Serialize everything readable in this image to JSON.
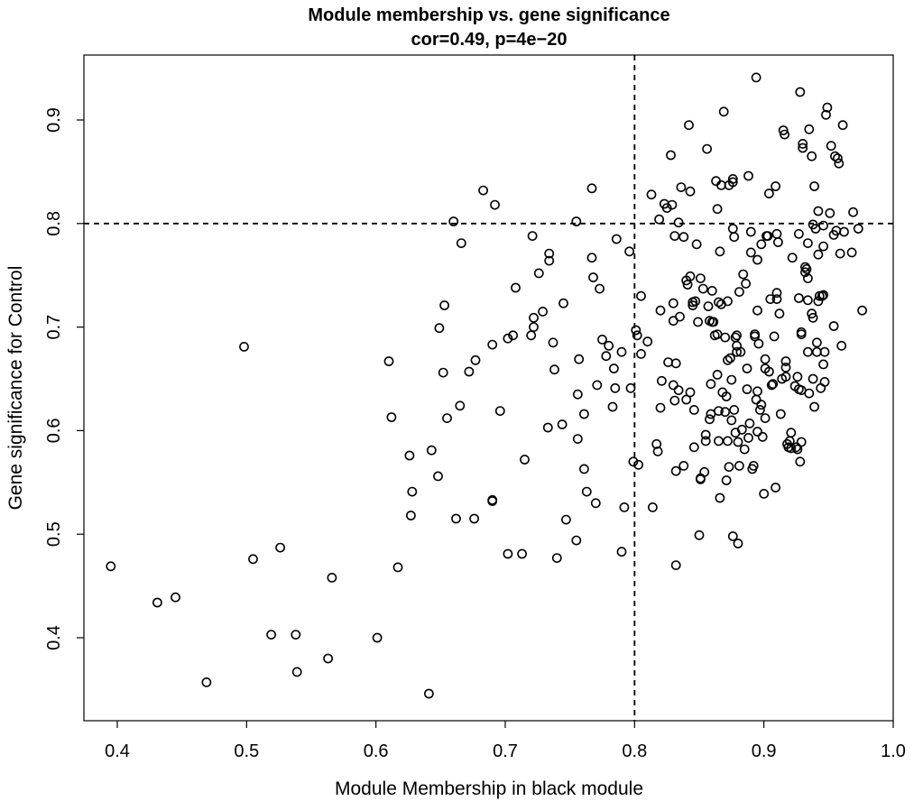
{
  "chart_data": {
    "type": "scatter",
    "title": "Module membership vs. gene significance",
    "subtitle": "cor=0.49, p=4e−20",
    "xlabel": "Module Membership in black module",
    "ylabel": "Gene significance for Control",
    "xlim": [
      0.375,
      1.0
    ],
    "ylim": [
      0.33,
      0.96
    ],
    "xticks": [
      0.4,
      0.5,
      0.6,
      0.7,
      0.8,
      0.9,
      1.0
    ],
    "xtick_labels": [
      "0.4",
      "0.5",
      "0.6",
      "0.7",
      "0.8",
      "0.9",
      "1.0"
    ],
    "yticks": [
      0.4,
      0.5,
      0.6,
      0.7,
      0.8,
      0.9
    ],
    "ytick_labels": [
      "0.4",
      "0.5",
      "0.6",
      "0.7",
      "0.8",
      "0.9"
    ],
    "reference_lines": [
      {
        "orientation": "vertical",
        "value": 0.8,
        "style": "dashed"
      },
      {
        "orientation": "horizontal",
        "value": 0.8,
        "style": "dashed"
      }
    ],
    "grid": false,
    "marker": "open-circle",
    "color": "#000000",
    "points": [
      [
        0.395,
        0.469
      ],
      [
        0.431,
        0.434
      ],
      [
        0.445,
        0.439
      ],
      [
        0.469,
        0.357
      ],
      [
        0.498,
        0.681
      ],
      [
        0.505,
        0.476
      ],
      [
        0.519,
        0.403
      ],
      [
        0.526,
        0.487
      ],
      [
        0.538,
        0.403
      ],
      [
        0.539,
        0.367
      ],
      [
        0.563,
        0.38
      ],
      [
        0.566,
        0.458
      ],
      [
        0.601,
        0.4
      ],
      [
        0.61,
        0.667
      ],
      [
        0.612,
        0.613
      ],
      [
        0.617,
        0.468
      ],
      [
        0.626,
        0.576
      ],
      [
        0.627,
        0.518
      ],
      [
        0.628,
        0.541
      ],
      [
        0.641,
        0.346
      ],
      [
        0.643,
        0.581
      ],
      [
        0.648,
        0.556
      ],
      [
        0.649,
        0.699
      ],
      [
        0.652,
        0.656
      ],
      [
        0.653,
        0.721
      ],
      [
        0.655,
        0.612
      ],
      [
        0.66,
        0.802
      ],
      [
        0.662,
        0.515
      ],
      [
        0.665,
        0.624
      ],
      [
        0.666,
        0.781
      ],
      [
        0.672,
        0.657
      ],
      [
        0.676,
        0.515
      ],
      [
        0.677,
        0.668
      ],
      [
        0.683,
        0.832
      ],
      [
        0.69,
        0.533
      ],
      [
        0.69,
        0.532
      ],
      [
        0.69,
        0.683
      ],
      [
        0.692,
        0.818
      ],
      [
        0.696,
        0.619
      ],
      [
        0.702,
        0.481
      ],
      [
        0.702,
        0.689
      ],
      [
        0.706,
        0.692
      ],
      [
        0.708,
        0.738
      ],
      [
        0.713,
        0.481
      ],
      [
        0.715,
        0.572
      ],
      [
        0.72,
        0.692
      ],
      [
        0.721,
        0.788
      ],
      [
        0.722,
        0.709
      ],
      [
        0.722,
        0.7
      ],
      [
        0.726,
        0.752
      ],
      [
        0.729,
        0.715
      ],
      [
        0.733,
        0.603
      ],
      [
        0.734,
        0.771
      ],
      [
        0.734,
        0.764
      ],
      [
        0.737,
        0.685
      ],
      [
        0.738,
        0.659
      ],
      [
        0.74,
        0.477
      ],
      [
        0.744,
        0.606
      ],
      [
        0.745,
        0.723
      ],
      [
        0.747,
        0.514
      ],
      [
        0.755,
        0.802
      ],
      [
        0.755,
        0.494
      ],
      [
        0.756,
        0.592
      ],
      [
        0.756,
        0.635
      ],
      [
        0.757,
        0.669
      ],
      [
        0.761,
        0.563
      ],
      [
        0.761,
        0.616
      ],
      [
        0.763,
        0.541
      ],
      [
        0.767,
        0.834
      ],
      [
        0.767,
        0.767
      ],
      [
        0.768,
        0.748
      ],
      [
        0.77,
        0.53
      ],
      [
        0.771,
        0.644
      ],
      [
        0.773,
        0.737
      ],
      [
        0.775,
        0.688
      ],
      [
        0.778,
        0.672
      ],
      [
        0.78,
        0.682
      ],
      [
        0.783,
        0.623
      ],
      [
        0.784,
        0.66
      ],
      [
        0.785,
        0.641
      ],
      [
        0.786,
        0.785
      ],
      [
        0.79,
        0.676
      ],
      [
        0.79,
        0.483
      ],
      [
        0.792,
        0.526
      ],
      [
        0.796,
        0.773
      ],
      [
        0.797,
        0.641
      ],
      [
        0.799,
        0.57
      ],
      [
        0.801,
        0.697
      ],
      [
        0.802,
        0.692
      ],
      [
        0.803,
        0.567
      ],
      [
        0.805,
        0.73
      ],
      [
        0.805,
        0.674
      ],
      [
        0.81,
        0.686
      ],
      [
        0.813,
        0.828
      ],
      [
        0.814,
        0.526
      ],
      [
        0.817,
        0.587
      ],
      [
        0.818,
        0.58
      ],
      [
        0.819,
        0.804
      ],
      [
        0.82,
        0.622
      ],
      [
        0.82,
        0.716
      ],
      [
        0.821,
        0.648
      ],
      [
        0.823,
        0.819
      ],
      [
        0.825,
        0.815
      ],
      [
        0.826,
        0.666
      ],
      [
        0.828,
        0.866
      ],
      [
        0.829,
        0.818
      ],
      [
        0.83,
        0.644
      ],
      [
        0.83,
        0.706
      ],
      [
        0.83,
        0.723
      ],
      [
        0.831,
        0.788
      ],
      [
        0.831,
        0.629
      ],
      [
        0.832,
        0.47
      ],
      [
        0.832,
        0.561
      ],
      [
        0.832,
        0.665
      ],
      [
        0.834,
        0.801
      ],
      [
        0.834,
        0.639
      ],
      [
        0.835,
        0.71
      ],
      [
        0.836,
        0.835
      ],
      [
        0.838,
        0.566
      ],
      [
        0.838,
        0.787
      ],
      [
        0.84,
        0.745
      ],
      [
        0.84,
        0.63
      ],
      [
        0.841,
        0.741
      ],
      [
        0.842,
        0.895
      ],
      [
        0.843,
        0.749
      ],
      [
        0.843,
        0.831
      ],
      [
        0.843,
        0.637
      ],
      [
        0.845,
        0.724
      ],
      [
        0.845,
        0.721
      ],
      [
        0.846,
        0.584
      ],
      [
        0.846,
        0.62
      ],
      [
        0.847,
        0.725
      ],
      [
        0.848,
        0.78
      ],
      [
        0.849,
        0.705
      ],
      [
        0.85,
        0.499
      ],
      [
        0.851,
        0.747
      ],
      [
        0.851,
        0.554
      ],
      [
        0.851,
        0.553
      ],
      [
        0.853,
        0.737
      ],
      [
        0.854,
        0.56
      ],
      [
        0.855,
        0.596
      ],
      [
        0.855,
        0.59
      ],
      [
        0.856,
        0.872
      ],
      [
        0.857,
        0.72
      ],
      [
        0.858,
        0.611
      ],
      [
        0.858,
        0.706
      ],
      [
        0.859,
        0.645
      ],
      [
        0.859,
        0.616
      ],
      [
        0.86,
        0.735
      ],
      [
        0.86,
        0.705
      ],
      [
        0.861,
        0.705
      ],
      [
        0.862,
        0.692
      ],
      [
        0.863,
        0.841
      ],
      [
        0.864,
        0.693
      ],
      [
        0.864,
        0.814
      ],
      [
        0.864,
        0.654
      ],
      [
        0.865,
        0.619
      ],
      [
        0.865,
        0.724
      ],
      [
        0.865,
        0.59
      ],
      [
        0.866,
        0.535
      ],
      [
        0.866,
        0.773
      ],
      [
        0.867,
        0.837
      ],
      [
        0.867,
        0.722
      ],
      [
        0.868,
        0.637
      ],
      [
        0.869,
        0.908
      ],
      [
        0.87,
        0.618
      ],
      [
        0.87,
        0.69
      ],
      [
        0.871,
        0.552
      ],
      [
        0.871,
        0.633
      ],
      [
        0.872,
        0.668
      ],
      [
        0.872,
        0.59
      ],
      [
        0.872,
        0.725
      ],
      [
        0.873,
        0.565
      ],
      [
        0.873,
        0.837
      ],
      [
        0.874,
        0.67
      ],
      [
        0.875,
        0.61
      ],
      [
        0.875,
        0.649
      ],
      [
        0.876,
        0.843
      ],
      [
        0.876,
        0.498
      ],
      [
        0.876,
        0.84
      ],
      [
        0.876,
        0.795
      ],
      [
        0.877,
        0.787
      ],
      [
        0.877,
        0.62
      ],
      [
        0.878,
        0.69
      ],
      [
        0.878,
        0.598
      ],
      [
        0.879,
        0.692
      ],
      [
        0.879,
        0.682
      ],
      [
        0.879,
        0.676
      ],
      [
        0.88,
        0.491
      ],
      [
        0.88,
        0.589
      ],
      [
        0.881,
        0.734
      ],
      [
        0.881,
        0.566
      ],
      [
        0.882,
        0.676
      ],
      [
        0.883,
        0.601
      ],
      [
        0.884,
        0.751
      ],
      [
        0.885,
        0.582
      ],
      [
        0.886,
        0.742
      ],
      [
        0.887,
        0.66
      ],
      [
        0.887,
        0.64
      ],
      [
        0.888,
        0.846
      ],
      [
        0.888,
        0.593
      ],
      [
        0.889,
        0.607
      ],
      [
        0.89,
        0.772
      ],
      [
        0.89,
        0.792
      ],
      [
        0.891,
        0.563
      ],
      [
        0.892,
        0.566
      ],
      [
        0.893,
        0.691
      ],
      [
        0.893,
        0.693
      ],
      [
        0.894,
        0.63
      ],
      [
        0.894,
        0.941
      ],
      [
        0.895,
        0.599
      ],
      [
        0.895,
        0.638
      ],
      [
        0.895,
        0.765
      ],
      [
        0.895,
        0.716
      ],
      [
        0.896,
        0.684
      ],
      [
        0.897,
        0.62
      ],
      [
        0.898,
        0.78
      ],
      [
        0.898,
        0.625
      ],
      [
        0.899,
        0.594
      ],
      [
        0.9,
        0.539
      ],
      [
        0.901,
        0.669
      ],
      [
        0.901,
        0.66
      ],
      [
        0.901,
        0.612
      ],
      [
        0.902,
        0.788
      ],
      [
        0.903,
        0.788
      ],
      [
        0.904,
        0.657
      ],
      [
        0.904,
        0.829
      ],
      [
        0.905,
        0.727
      ],
      [
        0.906,
        0.644
      ],
      [
        0.907,
        0.645
      ],
      [
        0.908,
        0.691
      ],
      [
        0.909,
        0.836
      ],
      [
        0.909,
        0.545
      ],
      [
        0.91,
        0.733
      ],
      [
        0.91,
        0.727
      ],
      [
        0.91,
        0.79
      ],
      [
        0.911,
        0.782
      ],
      [
        0.912,
        0.713
      ],
      [
        0.913,
        0.616
      ],
      [
        0.914,
        0.65
      ],
      [
        0.915,
        0.89
      ],
      [
        0.916,
        0.886
      ],
      [
        0.917,
        0.661
      ],
      [
        0.917,
        0.652
      ],
      [
        0.917,
        0.667
      ],
      [
        0.918,
        0.587
      ],
      [
        0.919,
        0.584
      ],
      [
        0.92,
        0.59
      ],
      [
        0.921,
        0.598
      ],
      [
        0.921,
        0.583
      ],
      [
        0.922,
        0.767
      ],
      [
        0.924,
        0.643
      ],
      [
        0.925,
        0.584
      ],
      [
        0.926,
        0.582
      ],
      [
        0.926,
        0.652
      ],
      [
        0.927,
        0.64
      ],
      [
        0.927,
        0.728
      ],
      [
        0.927,
        0.79
      ],
      [
        0.928,
        0.57
      ],
      [
        0.928,
        0.927
      ],
      [
        0.929,
        0.695
      ],
      [
        0.929,
        0.589
      ],
      [
        0.929,
        0.693
      ],
      [
        0.929,
        0.639
      ],
      [
        0.93,
        0.873
      ],
      [
        0.93,
        0.877
      ],
      [
        0.932,
        0.753
      ],
      [
        0.932,
        0.758
      ],
      [
        0.933,
        0.756
      ],
      [
        0.934,
        0.781
      ],
      [
        0.934,
        0.747
      ],
      [
        0.934,
        0.676
      ],
      [
        0.934,
        0.726
      ],
      [
        0.935,
        0.636
      ],
      [
        0.935,
        0.891
      ],
      [
        0.937,
        0.713
      ],
      [
        0.937,
        0.865
      ],
      [
        0.938,
        0.65
      ],
      [
        0.938,
        0.799
      ],
      [
        0.938,
        0.709
      ],
      [
        0.939,
        0.623
      ],
      [
        0.939,
        0.836
      ],
      [
        0.94,
        0.795
      ],
      [
        0.941,
        0.685
      ],
      [
        0.941,
        0.676
      ],
      [
        0.942,
        0.77
      ],
      [
        0.942,
        0.725
      ],
      [
        0.942,
        0.812
      ],
      [
        0.943,
        0.73
      ],
      [
        0.944,
        0.641
      ],
      [
        0.945,
        0.73
      ],
      [
        0.946,
        0.778
      ],
      [
        0.946,
        0.664
      ],
      [
        0.946,
        0.798
      ],
      [
        0.946,
        0.731
      ],
      [
        0.947,
        0.647
      ],
      [
        0.947,
        0.676
      ],
      [
        0.948,
        0.905
      ],
      [
        0.949,
        0.912
      ],
      [
        0.951,
        0.81
      ],
      [
        0.952,
        0.875
      ],
      [
        0.954,
        0.789
      ],
      [
        0.954,
        0.701
      ],
      [
        0.955,
        0.865
      ],
      [
        0.956,
        0.793
      ],
      [
        0.957,
        0.863
      ],
      [
        0.958,
        0.858
      ],
      [
        0.959,
        0.771
      ],
      [
        0.96,
        0.682
      ],
      [
        0.961,
        0.895
      ],
      [
        0.962,
        0.792
      ],
      [
        0.968,
        0.772
      ],
      [
        0.969,
        0.811
      ],
      [
        0.973,
        0.795
      ],
      [
        0.976,
        0.716
      ]
    ]
  }
}
